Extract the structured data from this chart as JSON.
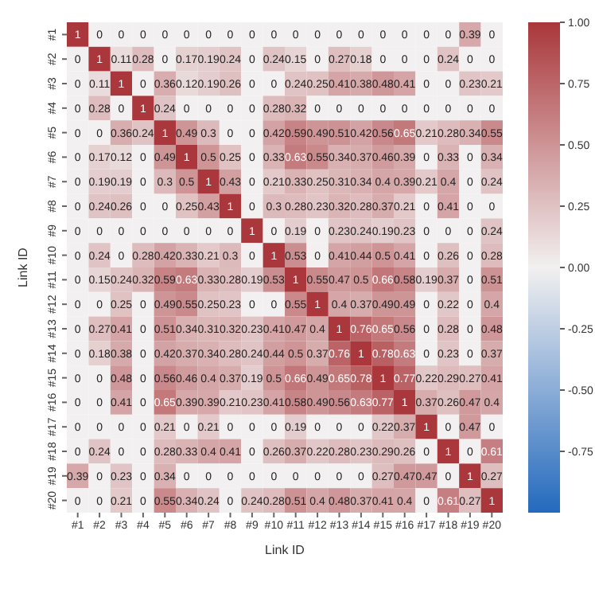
{
  "chart_data": {
    "type": "heatmap",
    "xlabel": "Link ID",
    "ylabel": "Link ID",
    "categories": [
      "#1",
      "#2",
      "#3",
      "#4",
      "#5",
      "#6",
      "#7",
      "#8",
      "#9",
      "#10",
      "#11",
      "#12",
      "#13",
      "#14",
      "#15",
      "#16",
      "#17",
      "#18",
      "#19",
      "#20"
    ],
    "y_categories": [
      "#1",
      "#2",
      "#3",
      "#4",
      "#5",
      "#6",
      "#7",
      "#8",
      "#9",
      "#10",
      "#11",
      "#12",
      "#13",
      "#14",
      "#15",
      "#16",
      "#17",
      "#18",
      "#19",
      "#20"
    ],
    "cells": [
      [
        1,
        0,
        0,
        0,
        0,
        0,
        0,
        0,
        0,
        0,
        0,
        0,
        0,
        0,
        0,
        0,
        0,
        0,
        0.39,
        0
      ],
      [
        0,
        1,
        0.11,
        0.28,
        0,
        0.17,
        0.19,
        0.24,
        0,
        0.24,
        0.15,
        0,
        0.27,
        0.18,
        0,
        0,
        0,
        0.24,
        0,
        0
      ],
      [
        0,
        0.11,
        1,
        0,
        0.36,
        0.12,
        0.19,
        0.26,
        0,
        0,
        0.24,
        0.25,
        0.41,
        0.38,
        0.48,
        0.41,
        0,
        0,
        0.23,
        0.21
      ],
      [
        0,
        0.28,
        0,
        1,
        0.24,
        0,
        0,
        0,
        0,
        0.28,
        0.32,
        0,
        0,
        0,
        0,
        0,
        0,
        0,
        0,
        0
      ],
      [
        0,
        0,
        0.36,
        0.24,
        1,
        0.49,
        0.3,
        0,
        0,
        0.42,
        0.59,
        0.49,
        0.51,
        0.42,
        0.56,
        0.65,
        0.21,
        0.28,
        0.34,
        0.55
      ],
      [
        0,
        0.17,
        0.12,
        0,
        0.49,
        1,
        0.5,
        0.25,
        0,
        0.33,
        0.63,
        0.55,
        0.34,
        0.37,
        0.46,
        0.39,
        0,
        0.33,
        0,
        0.34
      ],
      [
        0,
        0.19,
        0.19,
        0,
        0.3,
        0.5,
        1,
        0.43,
        0,
        0.21,
        0.33,
        0.25,
        0.31,
        0.34,
        0.4,
        0.39,
        0.21,
        0.4,
        0,
        0.24
      ],
      [
        0,
        0.24,
        0.26,
        0,
        0,
        0.25,
        0.43,
        1,
        0,
        0.3,
        0.28,
        0.23,
        0.32,
        0.28,
        0.37,
        0.21,
        0,
        0.41,
        0,
        0
      ],
      [
        0,
        0,
        0,
        0,
        0,
        0,
        0,
        0,
        1,
        0,
        0.19,
        0,
        0.23,
        0.24,
        0.19,
        0.23,
        0,
        0,
        0,
        0.24
      ],
      [
        0,
        0.24,
        0,
        0.28,
        0.42,
        0.33,
        0.21,
        0.3,
        0,
        1,
        0.53,
        0,
        0.41,
        0.44,
        0.5,
        0.41,
        0,
        0.26,
        0,
        0.28
      ],
      [
        0,
        0.15,
        0.24,
        0.32,
        0.59,
        0.63,
        0.33,
        0.28,
        0.19,
        0.53,
        1,
        0.55,
        0.47,
        0.5,
        0.66,
        0.58,
        0.19,
        0.37,
        0,
        0.51
      ],
      [
        0,
        0,
        0.25,
        0,
        0.49,
        0.55,
        0.25,
        0.23,
        0,
        0,
        0.55,
        1,
        0.4,
        0.37,
        0.49,
        0.49,
        0,
        0.22,
        0,
        0.4
      ],
      [
        0,
        0.27,
        0.41,
        0,
        0.51,
        0.34,
        0.31,
        0.32,
        0.23,
        0.41,
        0.47,
        0.4,
        1,
        0.76,
        0.65,
        0.56,
        0,
        0.28,
        0,
        0.48
      ],
      [
        0,
        0.18,
        0.38,
        0,
        0.42,
        0.37,
        0.34,
        0.28,
        0.24,
        0.44,
        0.5,
        0.37,
        0.76,
        1,
        0.78,
        0.63,
        0,
        0.23,
        0,
        0.37
      ],
      [
        0,
        0,
        0.48,
        0,
        0.56,
        0.46,
        0.4,
        0.37,
        0.19,
        0.5,
        0.66,
        0.49,
        0.65,
        0.78,
        1,
        0.77,
        0.22,
        0.29,
        0.27,
        0.41
      ],
      [
        0,
        0,
        0.41,
        0,
        0.65,
        0.39,
        0.39,
        0.21,
        0.23,
        0.41,
        0.58,
        0.49,
        0.56,
        0.63,
        0.77,
        1,
        0.37,
        0.26,
        0.47,
        0.4
      ],
      [
        0,
        0,
        0,
        0,
        0.21,
        0,
        0.21,
        0,
        0,
        0,
        0.19,
        0,
        0,
        0,
        0.22,
        0.37,
        1,
        0,
        0.47,
        0
      ],
      [
        0,
        0.24,
        0,
        0,
        0.28,
        0.33,
        0.4,
        0.41,
        0,
        0.26,
        0.37,
        0.22,
        0.28,
        0.23,
        0.29,
        0.26,
        0,
        1,
        0,
        0.61
      ],
      [
        0.39,
        0,
        0.23,
        0,
        0.34,
        0,
        0,
        0,
        0,
        0,
        0,
        0,
        0,
        0,
        0.27,
        0.47,
        0.47,
        0,
        1,
        0.27
      ],
      [
        0,
        0,
        0.21,
        0,
        0.55,
        0.34,
        0.24,
        0,
        0.24,
        0.28,
        0.51,
        0.4,
        0.48,
        0.37,
        0.41,
        0.4,
        0,
        0.61,
        0.27,
        1
      ]
    ],
    "data_labels": true,
    "clim": [
      -1,
      1
    ],
    "cticks": [
      {
        "value": -0.75,
        "label": "-0.75"
      },
      {
        "value": -0.5,
        "label": "-0.50"
      },
      {
        "value": -0.25,
        "label": "-0.25"
      },
      {
        "value": 0,
        "label": "0.00"
      },
      {
        "value": 0.25,
        "label": "0.25"
      },
      {
        "value": 0.5,
        "label": "0.50"
      },
      {
        "value": 0.75,
        "label": "0.75"
      },
      {
        "value": 1,
        "label": "1.00"
      }
    ]
  }
}
